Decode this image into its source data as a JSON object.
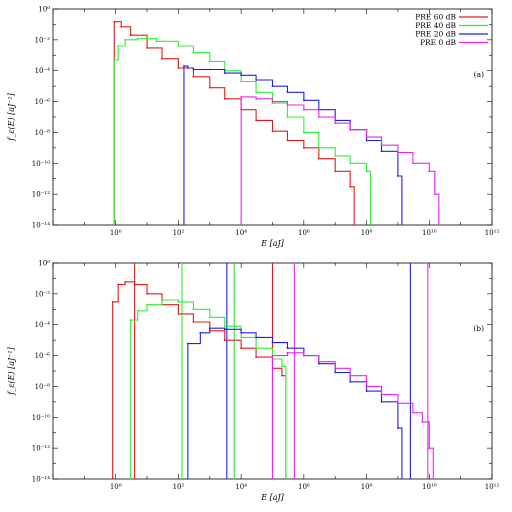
{
  "chart_data": [
    {
      "type": "line",
      "panel_tag": "(a)",
      "xlabel": "E [aJ]",
      "ylabel": "f_ε(E) [aJ⁻¹]",
      "x_scale": "log",
      "y_scale": "log",
      "xlim": [
        0.01,
        1000000000000
      ],
      "ylim": [
        1e-14,
        1
      ],
      "x_ticks": [
        {
          "value": 1,
          "label": "10⁰"
        },
        {
          "value": 100,
          "label": "10²"
        },
        {
          "value": 10000,
          "label": "10⁴"
        },
        {
          "value": 1000000,
          "label": "10⁶"
        },
        {
          "value": 100000000,
          "label": "10⁸"
        },
        {
          "value": 10000000000,
          "label": "10¹⁰"
        },
        {
          "value": 1000000000000,
          "label": "10¹²"
        }
      ],
      "y_ticks": [
        {
          "value": 1,
          "label": "10⁰"
        },
        {
          "value": 0.01,
          "label": "10⁻²"
        },
        {
          "value": 0.0001,
          "label": "10⁻⁴"
        },
        {
          "value": 1e-06,
          "label": "10⁻⁶"
        },
        {
          "value": 1e-08,
          "label": "10⁻⁸"
        },
        {
          "value": 1e-10,
          "label": "10⁻¹⁰"
        },
        {
          "value": 1e-12,
          "label": "10⁻¹²"
        },
        {
          "value": 1e-14,
          "label": "10⁻¹⁴"
        }
      ],
      "grid": false,
      "legend_position": "top-right",
      "series": [
        {
          "name": "PRE 60 dB",
          "color": "#e41a1c",
          "points": [
            [
              0.9,
              0.15
            ],
            [
              1.5,
              0.07
            ],
            [
              3,
              0.02
            ],
            [
              10,
              0.003
            ],
            [
              30,
              0.0006
            ],
            [
              100,
              0.00015
            ],
            [
              300,
              4e-05
            ],
            [
              1000,
              8e-06
            ],
            [
              3000,
              1.5e-06
            ],
            [
              10000,
              3e-07
            ],
            [
              30000,
              6e-08
            ],
            [
              100000,
              1.2e-08
            ],
            [
              300000,
              3e-09
            ],
            [
              1000000,
              1e-09
            ],
            [
              3000000,
              2e-10
            ],
            [
              10000000,
              3e-11
            ],
            [
              30000000,
              3e-12
            ]
          ]
        },
        {
          "name": "PRE 40 dB",
          "color": "#33ee33",
          "points": [
            [
              0.9,
              0.0005
            ],
            [
              1.2,
              0.004
            ],
            [
              2,
              0.01
            ],
            [
              5,
              0.012
            ],
            [
              20,
              0.008
            ],
            [
              100,
              0.004
            ],
            [
              300,
              0.0015
            ],
            [
              1000,
              0.0004
            ],
            [
              3000,
              0.0001
            ],
            [
              10000,
              2e-05
            ],
            [
              30000,
              4e-06
            ],
            [
              100000,
              8e-07
            ],
            [
              300000,
              1e-07
            ],
            [
              1000000,
              1e-08
            ],
            [
              3000000,
              1e-09
            ],
            [
              10000000,
              3e-10
            ],
            [
              30000000,
              1e-10
            ],
            [
              100000000,
              3e-11
            ]
          ]
        },
        {
          "name": "PRE 20 dB",
          "color": "#2222dd",
          "points": [
            [
              150,
              0.0002
            ],
            [
              200,
              0.00015
            ],
            [
              300,
              0.00012
            ],
            [
              1000,
              0.00012
            ],
            [
              3000,
              7e-05
            ],
            [
              10000,
              5e-05
            ],
            [
              30000,
              2.5e-05
            ],
            [
              100000,
              1e-05
            ],
            [
              300000,
              4e-06
            ],
            [
              1000000,
              1.2e-06
            ],
            [
              3000000,
              3e-07
            ],
            [
              10000000,
              6e-08
            ],
            [
              30000000,
              1.5e-08
            ],
            [
              100000000,
              3e-09
            ],
            [
              300000000,
              6e-10
            ],
            [
              1000000000,
              1.5e-11
            ]
          ]
        },
        {
          "name": "PRE 0 dB",
          "color": "#ee22ee",
          "points": [
            [
              10000,
              2e-06
            ],
            [
              30000,
              1.5e-06
            ],
            [
              100000,
              1e-06
            ],
            [
              300000,
              6e-07
            ],
            [
              1000000,
              3e-07
            ],
            [
              3000000,
              1e-07
            ],
            [
              10000000,
              4e-08
            ],
            [
              30000000,
              1.5e-08
            ],
            [
              100000000,
              5e-09
            ],
            [
              300000000,
              1.5e-09
            ],
            [
              1000000000,
              5e-10
            ],
            [
              3000000000,
              1e-10
            ],
            [
              10000000000,
              3e-11
            ],
            [
              15000000000,
              1e-12
            ]
          ]
        }
      ]
    },
    {
      "type": "line",
      "panel_tag": "(b)",
      "xlabel": "E [aJ]",
      "ylabel": "f_ε(E) [aJ⁻¹]",
      "x_scale": "log",
      "y_scale": "log",
      "xlim": [
        0.01,
        1000000000000
      ],
      "ylim": [
        1e-14,
        1
      ],
      "x_ticks": [
        {
          "value": 1,
          "label": "10⁰"
        },
        {
          "value": 100,
          "label": "10²"
        },
        {
          "value": 10000,
          "label": "10⁴"
        },
        {
          "value": 1000000,
          "label": "10⁶"
        },
        {
          "value": 100000000,
          "label": "10⁸"
        },
        {
          "value": 10000000000,
          "label": "10¹⁰"
        },
        {
          "value": 1000000000000,
          "label": "10¹²"
        }
      ],
      "y_ticks": [
        {
          "value": 1,
          "label": "10⁰"
        },
        {
          "value": 0.01,
          "label": "10⁻²"
        },
        {
          "value": 0.0001,
          "label": "10⁻⁴"
        },
        {
          "value": 1e-06,
          "label": "10⁻⁶"
        },
        {
          "value": 1e-08,
          "label": "10⁻⁸"
        },
        {
          "value": 1e-10,
          "label": "10⁻¹⁰"
        },
        {
          "value": 1e-12,
          "label": "10⁻¹²"
        },
        {
          "value": 1e-14,
          "label": "10⁻¹⁴"
        }
      ],
      "grid": false,
      "legend_position": "none",
      "series": [
        {
          "name": "PRE 60 dB",
          "color": "#e41a1c",
          "points": [
            [
              0.8,
              0.003
            ],
            [
              1.2,
              0.04
            ],
            [
              2,
              0.06
            ],
            [
              4,
              0.04
            ],
            [
              10,
              0.01
            ],
            [
              30,
              0.002
            ],
            [
              100,
              0.0005
            ],
            [
              300,
              0.00015
            ],
            [
              1000,
              4e-05
            ],
            [
              3000,
              1e-05
            ],
            [
              10000,
              3e-06
            ],
            [
              30000,
              8e-07
            ],
            [
              100000,
              1.5e-07
            ],
            [
              200000,
              5e-08
            ]
          ]
        },
        {
          "name": "PRE 40 dB",
          "color": "#33ee33",
          "points": [
            [
              3,
              0.0002
            ],
            [
              5,
              0.0008
            ],
            [
              10,
              0.002
            ],
            [
              30,
              0.004
            ],
            [
              100,
              0.003
            ],
            [
              300,
              0.001
            ],
            [
              1000,
              0.0003
            ],
            [
              3000,
              8e-05
            ],
            [
              10000,
              1.5e-05
            ],
            [
              30000,
              3e-06
            ],
            [
              100000,
              6e-07
            ],
            [
              200000,
              2e-07
            ]
          ]
        },
        {
          "name": "PRE 20 dB",
          "color": "#2222dd",
          "points": [
            [
              200,
              6e-06
            ],
            [
              500,
              3e-05
            ],
            [
              1000,
              6e-05
            ],
            [
              3000,
              5e-05
            ],
            [
              10000,
              3e-05
            ],
            [
              30000,
              1.5e-05
            ],
            [
              100000,
              7e-06
            ],
            [
              300000,
              3e-06
            ],
            [
              1000000,
              1e-06
            ],
            [
              3000000,
              3e-07
            ],
            [
              10000000,
              8e-08
            ],
            [
              30000000,
              2e-08
            ],
            [
              100000000,
              5e-09
            ],
            [
              300000000,
              1e-09
            ],
            [
              1000000000,
              2e-11
            ]
          ]
        },
        {
          "name": "PRE 0 dB",
          "color": "#ee22ee",
          "points": [
            [
              100000,
              1e-06
            ],
            [
              300000,
              1.5e-06
            ],
            [
              1000000,
              1e-06
            ],
            [
              3000000,
              4e-07
            ],
            [
              10000000,
              1.5e-07
            ],
            [
              30000000,
              5e-08
            ],
            [
              100000000,
              1e-08
            ],
            [
              300000000,
              3e-09
            ],
            [
              1000000000,
              8e-10
            ],
            [
              3000000000,
              2e-10
            ],
            [
              6000000000,
              5e-11
            ],
            [
              10000000000,
              1e-12
            ]
          ]
        }
      ],
      "vertical_lines": [
        {
          "series": "PRE 60 dB",
          "color": "#e41a1c",
          "x": 4
        },
        {
          "series": "PRE 60 dB",
          "color": "#e41a1c",
          "x": 100000
        },
        {
          "series": "PRE 40 dB",
          "color": "#33ee33",
          "x": 130
        },
        {
          "series": "PRE 40 dB",
          "color": "#33ee33",
          "x": 6000
        },
        {
          "series": "PRE 20 dB",
          "color": "#2222dd",
          "x": 3500
        },
        {
          "series": "PRE 20 dB",
          "color": "#2222dd",
          "x": 2500000000
        },
        {
          "series": "PRE 0 dB",
          "color": "#ee22ee",
          "x": 500000
        },
        {
          "series": "PRE 0 dB",
          "color": "#ee22ee",
          "x": 9000000000
        }
      ]
    }
  ]
}
